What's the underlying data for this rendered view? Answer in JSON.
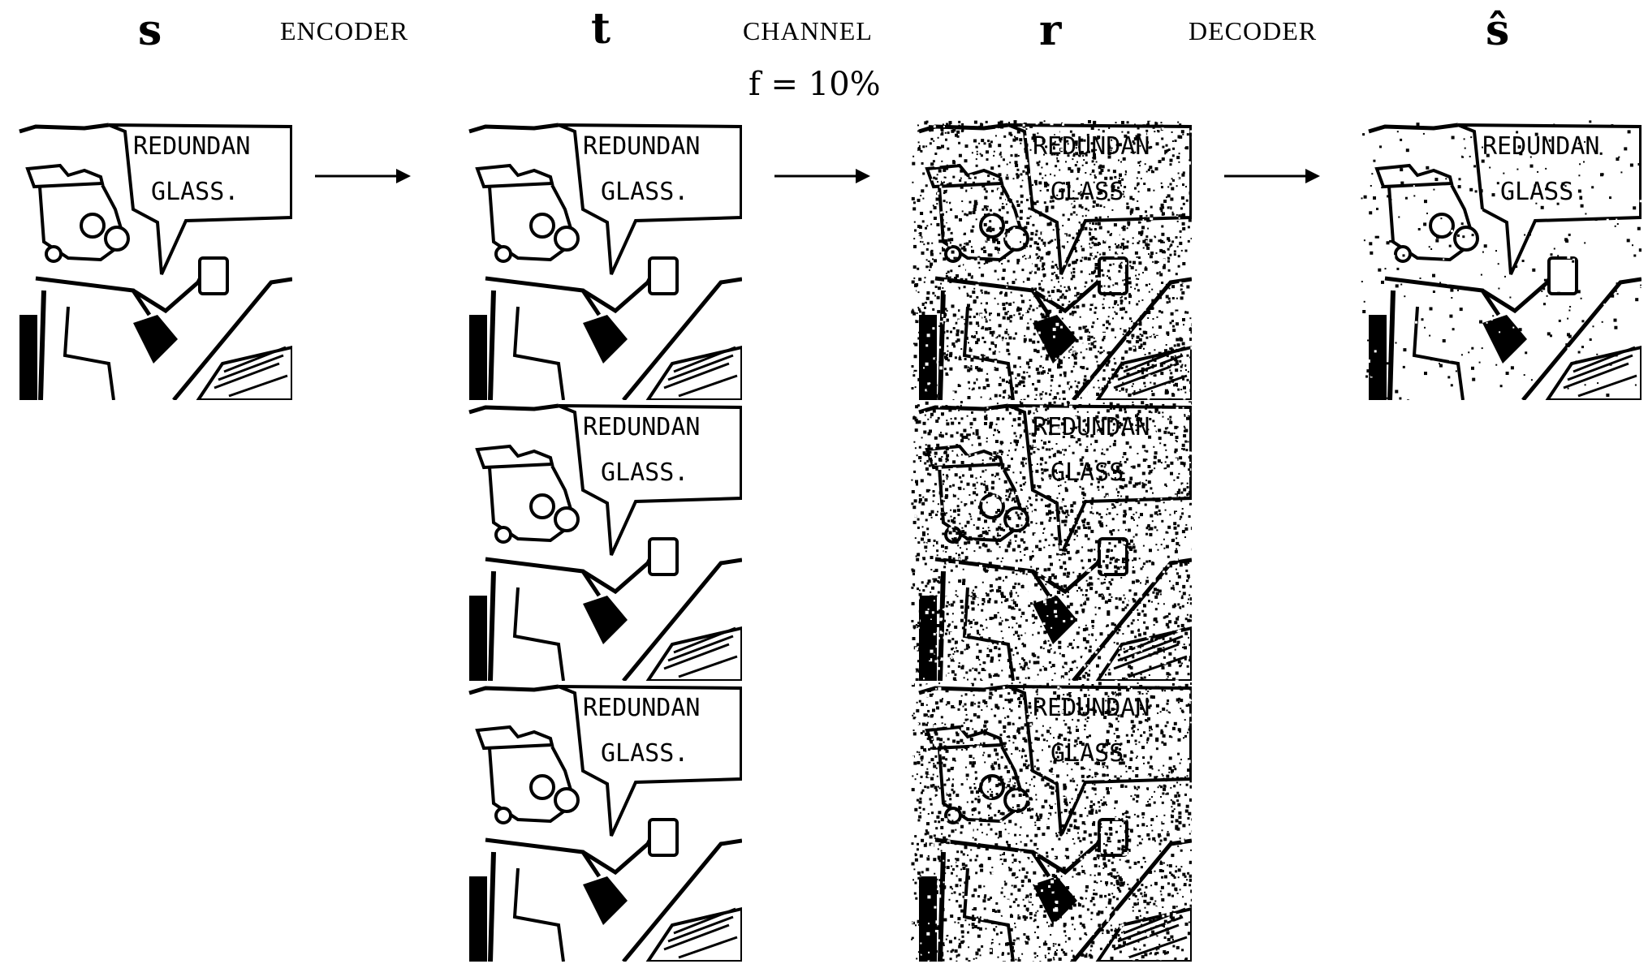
{
  "header": {
    "s_label": "s",
    "encoder_label": "ENCODER",
    "t_label": "t",
    "channel_label": "CHANNEL",
    "channel_param": "f = 10%",
    "r_label": "r",
    "decoder_label": "DECODER",
    "s_hat_label": "ŝ"
  },
  "panel_text": {
    "line1": "REDUNDAN",
    "line2": "GLASS."
  },
  "columns": [
    {
      "id": "s",
      "count": 1,
      "noise": "none"
    },
    {
      "id": "t",
      "count": 3,
      "noise": "none"
    },
    {
      "id": "r",
      "count": 3,
      "noise": "heavy"
    },
    {
      "id": "s_hat",
      "count": 1,
      "noise": "light"
    }
  ]
}
